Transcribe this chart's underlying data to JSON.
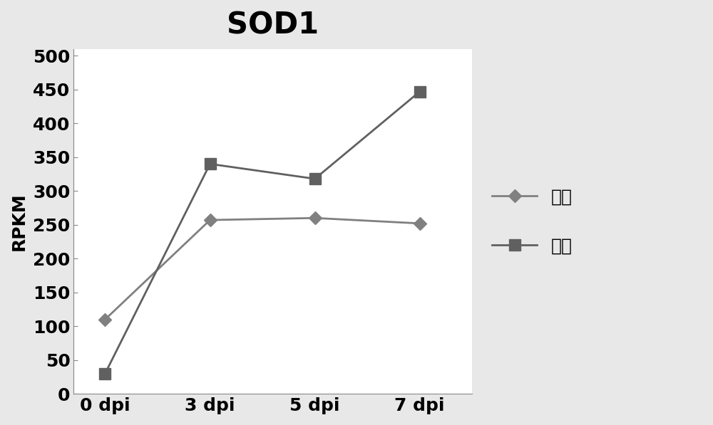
{
  "title": "SOD1",
  "xlabel": "",
  "ylabel": "RPKM",
  "x_labels": [
    "0 dpi",
    "3 dpi",
    "5 dpi",
    "7 dpi"
  ],
  "x_values": [
    0,
    1,
    2,
    3
  ],
  "series": [
    {
      "name": "通城",
      "values": [
        110,
        257,
        260,
        252
      ],
      "color": "#808080",
      "marker": "D",
      "markersize": 9,
      "linewidth": 2.0
    },
    {
      "name": "长白",
      "values": [
        30,
        340,
        318,
        447
      ],
      "color": "#606060",
      "marker": "s",
      "markersize": 12,
      "linewidth": 2.0
    }
  ],
  "ylim": [
    0,
    510
  ],
  "yticks": [
    0,
    50,
    100,
    150,
    200,
    250,
    300,
    350,
    400,
    450,
    500
  ],
  "title_fontsize": 30,
  "axis_label_fontsize": 18,
  "tick_fontsize": 18,
  "legend_fontsize": 18,
  "background_color": "#e8e8e8",
  "plot_bg_color": "#ffffff"
}
